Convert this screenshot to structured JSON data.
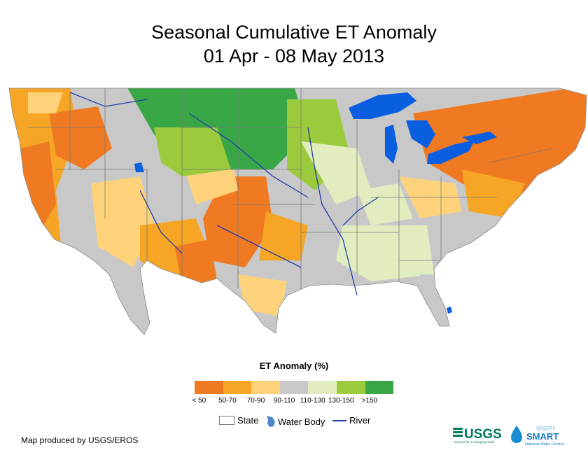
{
  "title": {
    "line1": "Seasonal Cumulative ET Anomaly",
    "line2": "01 Apr - 08 May 2013"
  },
  "legend": {
    "title": "ET Anomaly (%)",
    "bins": [
      {
        "label": "< 50",
        "color": "#f07a22"
      },
      {
        "label": "50-70",
        "color": "#f6a524"
      },
      {
        "label": "70-90",
        "color": "#fdd27a"
      },
      {
        "label": "90-110",
        "color": "#c8c8c8"
      },
      {
        "label": "110-130",
        "color": "#e1edbf"
      },
      {
        "label": "130-150",
        "color": "#9cca3d"
      },
      {
        "label": ">150",
        "color": "#3aa747"
      }
    ]
  },
  "map_key": {
    "state": "State",
    "water_body": "Water Body",
    "river": "River"
  },
  "footer": {
    "credit": "Map produced by USGS/EROS"
  },
  "logos": {
    "usgs": "USGS",
    "usgs_tagline": "science for a changing world",
    "water": "water",
    "smart": "SMART",
    "ws_tagline": "National Water Census"
  },
  "colors": {
    "water": "#0a5ee0",
    "river": "#1f3ca8",
    "state_line": "#7a7a7a"
  }
}
